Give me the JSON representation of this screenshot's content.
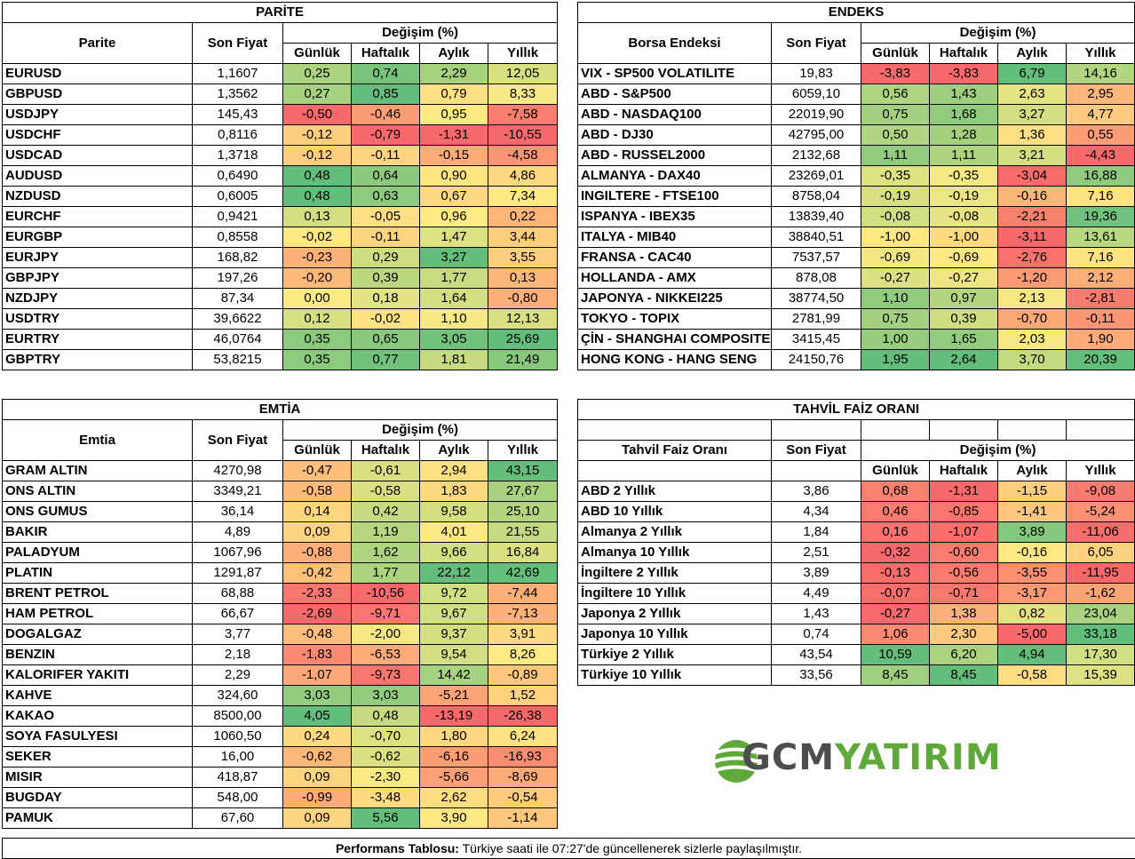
{
  "colors": {
    "low": "#f8696b",
    "mid": "#ffeb84",
    "high": "#63be7b"
  },
  "parite": {
    "title": "PARİTE",
    "col_name": "Parite",
    "col_price": "Son Fiyat",
    "col_change": "Değişim (%)",
    "subcols": [
      "Günlük",
      "Haftalık",
      "Aylık",
      "Yıllık"
    ],
    "rows": [
      [
        "EURUSD",
        "1,1607",
        "0,25",
        "0,74",
        "2,29",
        "12,05"
      ],
      [
        "GBPUSD",
        "1,3562",
        "0,27",
        "0,85",
        "0,79",
        "8,33"
      ],
      [
        "USDJPY",
        "145,43",
        "-0,50",
        "-0,46",
        "0,95",
        "-7,58"
      ],
      [
        "USDCHF",
        "0,8116",
        "-0,12",
        "-0,79",
        "-1,31",
        "-10,55"
      ],
      [
        "USDCAD",
        "1,3718",
        "-0,12",
        "-0,11",
        "-0,15",
        "-4,58"
      ],
      [
        "AUDUSD",
        "0,6490",
        "0,48",
        "0,64",
        "0,90",
        "4,86"
      ],
      [
        "NZDUSD",
        "0,6005",
        "0,48",
        "0,63",
        "0,67",
        "7,34"
      ],
      [
        "EURCHF",
        "0,9421",
        "0,13",
        "-0,05",
        "0,96",
        "0,22"
      ],
      [
        "EURGBP",
        "0,8558",
        "-0,02",
        "-0,11",
        "1,47",
        "3,44"
      ],
      [
        "EURJPY",
        "168,82",
        "-0,23",
        "0,29",
        "3,27",
        "3,55"
      ],
      [
        "GBPJPY",
        "197,26",
        "-0,20",
        "0,39",
        "1,77",
        "0,13"
      ],
      [
        "NZDJPY",
        "87,34",
        "0,00",
        "0,18",
        "1,64",
        "-0,80"
      ],
      [
        "USDTRY",
        "39,6622",
        "0,12",
        "-0,02",
        "1,10",
        "12,13"
      ],
      [
        "EURTRY",
        "46,0764",
        "0,35",
        "0,65",
        "3,05",
        "25,69"
      ],
      [
        "GBPTRY",
        "53,8215",
        "0,35",
        "0,77",
        "1,81",
        "21,49"
      ]
    ]
  },
  "endeks": {
    "title": "ENDEKS",
    "col_name": "Borsa Endeksi",
    "col_price": "Son Fiyat",
    "col_change": "Değişim (%)",
    "subcols": [
      "Günlük",
      "Haftalık",
      "Aylık",
      "Yıllık"
    ],
    "rows": [
      [
        "VIX  - SP500 VOLATILITE",
        "19,83",
        "-3,83",
        "-3,83",
        "6,79",
        "14,16"
      ],
      [
        "ABD - S&P500",
        "6059,10",
        "0,56",
        "1,43",
        "2,63",
        "2,95"
      ],
      [
        "ABD - NASDAQ100",
        "22019,90",
        "0,75",
        "1,68",
        "3,27",
        "4,77"
      ],
      [
        "ABD - DJ30",
        "42795,00",
        "0,50",
        "1,28",
        "1,36",
        "0,55"
      ],
      [
        "ABD - RUSSEL2000",
        "2132,68",
        "1,11",
        "1,11",
        "3,21",
        "-4,43"
      ],
      [
        "ALMANYA - DAX40",
        "23269,01",
        "-0,35",
        "-0,35",
        "-3,04",
        "16,88"
      ],
      [
        "INGILTERE - FTSE100",
        "8758,04",
        "-0,19",
        "-0,19",
        "-0,16",
        "7,16"
      ],
      [
        "ISPANYA - IBEX35",
        "13839,40",
        "-0,08",
        "-0,08",
        "-2,21",
        "19,36"
      ],
      [
        "ITALYA - MIB40",
        "38840,51",
        "-1,00",
        "-1,00",
        "-3,11",
        "13,61"
      ],
      [
        "FRANSA - CAC40",
        "7537,57",
        "-0,69",
        "-0,69",
        "-2,76",
        "7,16"
      ],
      [
        "HOLLANDA - AMX",
        "878,08",
        "-0,27",
        "-0,27",
        "-1,20",
        "2,12"
      ],
      [
        "JAPONYA - NIKKEI225",
        "38774,50",
        "1,10",
        "0,97",
        "2,13",
        "-2,81"
      ],
      [
        "TOKYO - TOPIX",
        "2781,99",
        "0,75",
        "0,39",
        "-0,70",
        "-0,11"
      ],
      [
        "ÇİN - SHANGHAI COMPOSITE",
        "3415,45",
        "1,00",
        "1,65",
        "2,03",
        "1,90"
      ],
      [
        "HONG KONG - HANG SENG",
        "24150,76",
        "1,95",
        "2,64",
        "3,70",
        "20,39"
      ]
    ]
  },
  "emtia": {
    "title": "EMTİA",
    "col_name": "Emtia",
    "col_price": "Son Fiyat",
    "col_change": "Değişim (%)",
    "subcols": [
      "Günlük",
      "Haftalık",
      "Aylık",
      "Yıllık"
    ],
    "rows": [
      [
        "GRAM ALTIN",
        "4270,98",
        "-0,47",
        "-0,61",
        "2,94",
        "43,15"
      ],
      [
        "ONS ALTIN",
        "3349,21",
        "-0,58",
        "-0,58",
        "1,83",
        "27,67"
      ],
      [
        "ONS GUMUS",
        "36,14",
        "0,14",
        "0,42",
        "9,58",
        "25,10"
      ],
      [
        "BAKIR",
        "4,89",
        "0,09",
        "1,19",
        "4,01",
        "21,55"
      ],
      [
        "PALADYUM",
        "1067,96",
        "-0,88",
        "1,62",
        "9,66",
        "16,84"
      ],
      [
        "PLATIN",
        "1291,87",
        "-0,42",
        "1,77",
        "22,12",
        "42,69"
      ],
      [
        "BRENT PETROL",
        "68,88",
        "-2,33",
        "-10,56",
        "9,72",
        "-7,44"
      ],
      [
        "HAM PETROL",
        "66,67",
        "-2,69",
        "-9,71",
        "9,67",
        "-7,13"
      ],
      [
        "DOGALGAZ",
        "3,77",
        "-0,48",
        "-2,00",
        "9,37",
        "3,91"
      ],
      [
        "BENZIN",
        "2,18",
        "-1,83",
        "-6,53",
        "9,54",
        "8,26"
      ],
      [
        "KALORIFER YAKITI",
        "2,29",
        "-1,07",
        "-9,73",
        "14,42",
        "-0,89"
      ],
      [
        "KAHVE",
        "324,60",
        "3,03",
        "3,03",
        "-5,21",
        "1,52"
      ],
      [
        "KAKAO",
        "8500,00",
        "4,05",
        "0,48",
        "-13,19",
        "-26,38"
      ],
      [
        "SOYA FASULYESI",
        "1060,50",
        "0,24",
        "-0,70",
        "1,80",
        "6,24"
      ],
      [
        "SEKER",
        "16,00",
        "-0,62",
        "-0,62",
        "-6,16",
        "-16,93"
      ],
      [
        "MISIR",
        "418,87",
        "0,09",
        "-2,30",
        "-5,66",
        "-8,69"
      ],
      [
        "BUGDAY",
        "548,00",
        "-0,99",
        "-3,48",
        "2,62",
        "-0,54"
      ],
      [
        "PAMUK",
        "67,60",
        "0,09",
        "5,56",
        "3,90",
        "-1,14"
      ]
    ]
  },
  "tahvil": {
    "title": "TAHVİL FAİZ ORANI",
    "col_name": "Tahvil Faiz Oranı",
    "col_price": "Son Fiyat",
    "col_change": "Değişim (%)",
    "subcols": [
      "Günlük",
      "Haftalık",
      "Aylık",
      "Yıllık"
    ],
    "rows": [
      [
        "ABD 2 Yıllık",
        "3,86",
        "0,68",
        "-1,31",
        "-1,15",
        "-9,08"
      ],
      [
        "ABD 10 Yıllık",
        "4,34",
        "0,46",
        "-0,85",
        "-1,41",
        "-5,24"
      ],
      [
        "Almanya 2 Yıllık",
        "1,84",
        "0,16",
        "-1,07",
        "3,89",
        "-11,06"
      ],
      [
        "Almanya 10 Yıllık",
        "2,51",
        "-0,32",
        "-0,60",
        "-0,16",
        "6,05"
      ],
      [
        "İngiltere 2 Yıllık",
        "3,89",
        "-0,13",
        "-0,56",
        "-3,55",
        "-11,95"
      ],
      [
        "İngiltere 10 Yıllık",
        "4,49",
        "-0,07",
        "-0,71",
        "-3,17",
        "-1,62"
      ],
      [
        "Japonya 2 Yıllık",
        "1,43",
        "-0,27",
        "1,38",
        "0,82",
        "23,04"
      ],
      [
        "Japonya 10 Yıllık",
        "0,74",
        "1,06",
        "2,30",
        "-5,00",
        "33,18"
      ],
      [
        "Türkiye 2 Yıllık",
        "43,54",
        "10,59",
        "6,20",
        "4,94",
        "17,30"
      ],
      [
        "Türkiye 10 Yıllık",
        "33,56",
        "8,45",
        "8,45",
        "-0,58",
        "15,39"
      ]
    ]
  },
  "footer": {
    "bold": "Performans Tablosu:",
    "text": " Türkiye saati ile 07:27'de güncellenerek sizlerle paylaşılmıştır."
  },
  "logo": {
    "part1": "GCM",
    "part2": "YATIRIM",
    "icon": "globe-swoosh-icon"
  }
}
